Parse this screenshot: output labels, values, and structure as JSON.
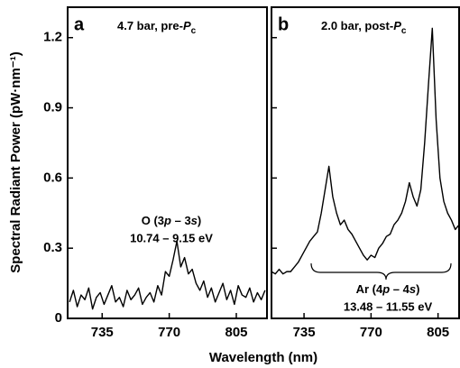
{
  "chart_data": {
    "type": "line",
    "ylabel": "Spectral Radiant Power (pW·nm⁻¹)",
    "xlabel": "Wavelength (nm)",
    "ylim": [
      0,
      1.33
    ],
    "yticks": [
      0,
      0.3,
      0.6,
      0.9,
      1.2
    ],
    "color": "#000000",
    "panels": [
      {
        "label": "a",
        "title_parts": [
          "4.7 bar, pre-",
          "P",
          "c"
        ],
        "annotation_parts": [
          "O (3",
          "p",
          " – 3",
          "s",
          ")"
        ],
        "annotation_energy": "10.74 – 9.15 eV",
        "xlim": [
          717,
          821
        ],
        "xticks": [
          735,
          770,
          805
        ],
        "x": [
          718,
          720,
          722,
          724,
          726,
          728,
          730,
          732,
          734,
          736,
          738,
          740,
          742,
          744,
          746,
          748,
          750,
          752,
          754,
          756,
          758,
          760,
          762,
          764,
          766,
          768,
          770,
          772,
          774,
          776,
          778,
          780,
          782,
          784,
          786,
          788,
          790,
          792,
          794,
          796,
          798,
          800,
          802,
          804,
          806,
          808,
          810,
          812,
          814,
          816,
          818,
          820
        ],
        "values": [
          0.07,
          0.12,
          0.05,
          0.1,
          0.08,
          0.13,
          0.04,
          0.09,
          0.11,
          0.06,
          0.1,
          0.14,
          0.07,
          0.09,
          0.05,
          0.12,
          0.08,
          0.1,
          0.13,
          0.06,
          0.09,
          0.11,
          0.07,
          0.14,
          0.1,
          0.2,
          0.18,
          0.25,
          0.33,
          0.22,
          0.26,
          0.19,
          0.21,
          0.15,
          0.12,
          0.16,
          0.09,
          0.13,
          0.07,
          0.11,
          0.15,
          0.08,
          0.12,
          0.06,
          0.14,
          0.1,
          0.09,
          0.13,
          0.07,
          0.11,
          0.08,
          0.12
        ]
      },
      {
        "label": "b",
        "title_parts": [
          "2.0 bar, post-",
          "P",
          "c"
        ],
        "annotation_parts": [
          "Ar (4",
          "p",
          " – 4",
          "s",
          ")"
        ],
        "annotation_energy": "13.48 – 11.55 eV",
        "xlim": [
          718,
          816
        ],
        "xticks": [
          735,
          770,
          805
        ],
        "x": [
          718,
          720,
          722,
          724,
          726,
          728,
          730,
          732,
          734,
          736,
          738,
          740,
          742,
          744,
          746,
          748,
          750,
          752,
          754,
          756,
          758,
          760,
          762,
          764,
          766,
          768,
          770,
          772,
          774,
          776,
          778,
          780,
          782,
          784,
          786,
          788,
          790,
          792,
          794,
          796,
          798,
          800,
          802,
          804,
          806,
          808,
          810,
          812,
          814,
          816
        ],
        "values": [
          0.2,
          0.19,
          0.21,
          0.19,
          0.2,
          0.2,
          0.22,
          0.24,
          0.27,
          0.3,
          0.33,
          0.35,
          0.37,
          0.45,
          0.55,
          0.65,
          0.52,
          0.45,
          0.4,
          0.42,
          0.38,
          0.36,
          0.33,
          0.3,
          0.27,
          0.25,
          0.27,
          0.26,
          0.3,
          0.32,
          0.35,
          0.36,
          0.4,
          0.42,
          0.45,
          0.5,
          0.58,
          0.52,
          0.48,
          0.55,
          0.75,
          1.0,
          1.24,
          0.85,
          0.6,
          0.5,
          0.45,
          0.42,
          0.38,
          0.4
        ]
      }
    ]
  }
}
